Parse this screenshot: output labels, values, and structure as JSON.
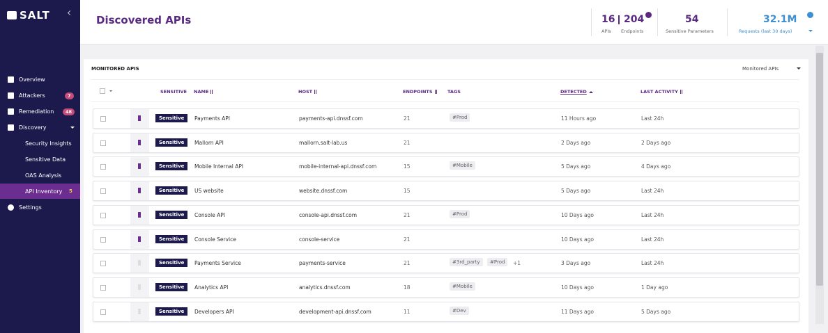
{
  "sidebar": {
    "logo": "SALT",
    "menu": [
      {
        "label": "Overview"
      },
      {
        "label": "Attackers",
        "badge": "7"
      },
      {
        "label": "Remediation",
        "badge": "48"
      },
      {
        "label": "Discovery"
      }
    ],
    "submenu": [
      {
        "label": "Security Insights"
      },
      {
        "label": "Sensitive Data"
      },
      {
        "label": "OAS Analysis"
      },
      {
        "label": "API Inventory",
        "badge": "5"
      }
    ],
    "settings": "Settings"
  },
  "header": {
    "title": "Discovered APIs",
    "stats": [
      {
        "value": "16",
        "label": "APIs"
      },
      {
        "value": "204",
        "label": "Endpoints"
      },
      {
        "value": "54",
        "label": "Sensitive Parameters"
      },
      {
        "value": "32.1M",
        "label": "Requests (last 30 days)"
      }
    ]
  },
  "table": {
    "section_title": "MONITORED APIS",
    "filter": "Monitored APIs",
    "columns": [
      "SENSITIVE",
      "NAME",
      "HOST",
      "ENDPOINTS",
      "TAGS",
      "DETECTED",
      "LAST ACTIVITY"
    ],
    "rows": [
      {
        "pinned": true,
        "sensitive": "Sensitive",
        "name": "Payments API",
        "host": "payments-api.dnssf.com",
        "endpoints": "21",
        "tags": [
          "#Prod"
        ],
        "detected": "11 Hours ago",
        "last_activity": "Last 24h"
      },
      {
        "pinned": true,
        "sensitive": "Sensitive",
        "name": "Mallorn API",
        "host": "mallorn.salt-lab.us",
        "endpoints": "21",
        "tags": [],
        "detected": "2 Days ago",
        "last_activity": "2 Days ago"
      },
      {
        "pinned": true,
        "sensitive": "Sensitive",
        "name": "Mobile Internal API",
        "host": "mobile-internal-api.dnssf.com",
        "endpoints": "15",
        "tags": [
          "#Mobile"
        ],
        "detected": "5 Days ago",
        "last_activity": "4 Days ago"
      },
      {
        "pinned": true,
        "sensitive": "Sensitive",
        "name": "US website",
        "host": "website.dnssf.com",
        "endpoints": "15",
        "tags": [],
        "detected": "5 Days ago",
        "last_activity": "Last 24h"
      },
      {
        "pinned": true,
        "sensitive": "Sensitive",
        "name": "Console API",
        "host": "console-api.dnssf.com",
        "endpoints": "21",
        "tags": [
          "#Prod"
        ],
        "detected": "10 Days ago",
        "last_activity": "Last 24h"
      },
      {
        "pinned": true,
        "sensitive": "Sensitive",
        "name": "Console Service",
        "host": "console-service",
        "endpoints": "21",
        "tags": [],
        "detected": "10 Days ago",
        "last_activity": "Last 24h"
      },
      {
        "pinned": false,
        "sensitive": "Sensitive",
        "name": "Payments Service",
        "host": "payments-service",
        "endpoints": "21",
        "tags": [
          "#3rd_party",
          "#Prod"
        ],
        "extra_tags": "+1",
        "detected": "3 Days ago",
        "last_activity": "Last 24h"
      },
      {
        "pinned": false,
        "sensitive": "Sensitive",
        "name": "Analytics API",
        "host": "analytics.dnssf.com",
        "endpoints": "18",
        "tags": [
          "#Mobile"
        ],
        "detected": "10 Days ago",
        "last_activity": "1 Day ago"
      },
      {
        "pinned": false,
        "sensitive": "Sensitive",
        "name": "Developers API",
        "host": "development-api.dnssf.com",
        "endpoints": "11",
        "tags": [
          "#Dev"
        ],
        "detected": "11 Days ago",
        "last_activity": "5 Days ago"
      }
    ]
  }
}
